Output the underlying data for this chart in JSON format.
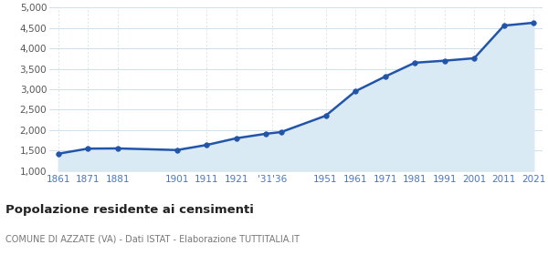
{
  "years": [
    1861,
    1871,
    1881,
    1901,
    1911,
    1921,
    1931,
    1936,
    1951,
    1961,
    1971,
    1981,
    1991,
    2001,
    2011,
    2021
  ],
  "population": [
    1420,
    1545,
    1550,
    1510,
    1635,
    1800,
    1910,
    1950,
    2350,
    2950,
    3310,
    3650,
    3700,
    3760,
    4560,
    4630
  ],
  "line_color": "#2255aa",
  "fill_color": "#daeaf5",
  "marker_color": "#2255aa",
  "bg_color": "#ffffff",
  "grid_color_h": "#c8dce8",
  "grid_color_v": "#c8dce8",
  "title": "Popolazione residente ai censimenti",
  "subtitle": "COMUNE DI AZZATE (VA) - Dati ISTAT - Elaborazione TUTTITALIA.IT",
  "title_color": "#222222",
  "subtitle_color": "#777777",
  "tick_label_color": "#4477cc",
  "ytick_label_color": "#555555",
  "ylim": [
    1000,
    5000
  ],
  "yticks": [
    1000,
    1500,
    2000,
    2500,
    3000,
    3500,
    4000,
    4500,
    5000
  ],
  "x_tick_positions": [
    1861,
    1871,
    1881,
    1901,
    1911,
    1921,
    1933,
    1951,
    1961,
    1971,
    1981,
    1991,
    2001,
    2011,
    2021
  ],
  "x_tick_labels": [
    "1861",
    "1871",
    "1881",
    "1901",
    "1911",
    "1921",
    "'31'36",
    "1951",
    "1961",
    "1971",
    "1981",
    "1991",
    "2001",
    "2011",
    "2021"
  ]
}
